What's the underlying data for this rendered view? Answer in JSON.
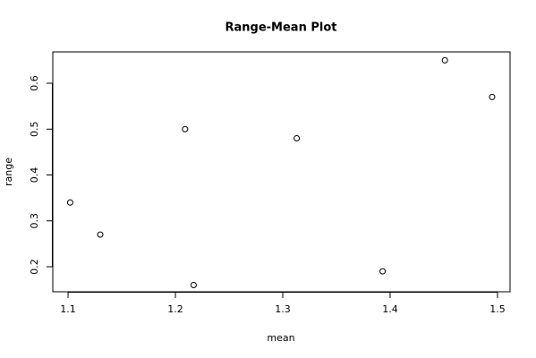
{
  "chart_data": {
    "type": "scatter",
    "title": "Range-Mean Plot",
    "x_label": "mean",
    "y_label": "range",
    "x": [
      1.102,
      1.13,
      1.209,
      1.217,
      1.313,
      1.393,
      1.451,
      1.495
    ],
    "values": [
      0.34,
      0.27,
      0.5,
      0.16,
      0.48,
      0.19,
      0.65,
      0.57
    ],
    "color": "#000000",
    "xlim": [
      1.0858,
      1.5117
    ],
    "ylim": [
      0.1454,
      0.6683
    ],
    "xticks": [
      1.1,
      1.2,
      1.3,
      1.4,
      1.5
    ],
    "yticks": [
      0.2,
      0.3,
      0.4,
      0.5,
      0.6
    ]
  }
}
